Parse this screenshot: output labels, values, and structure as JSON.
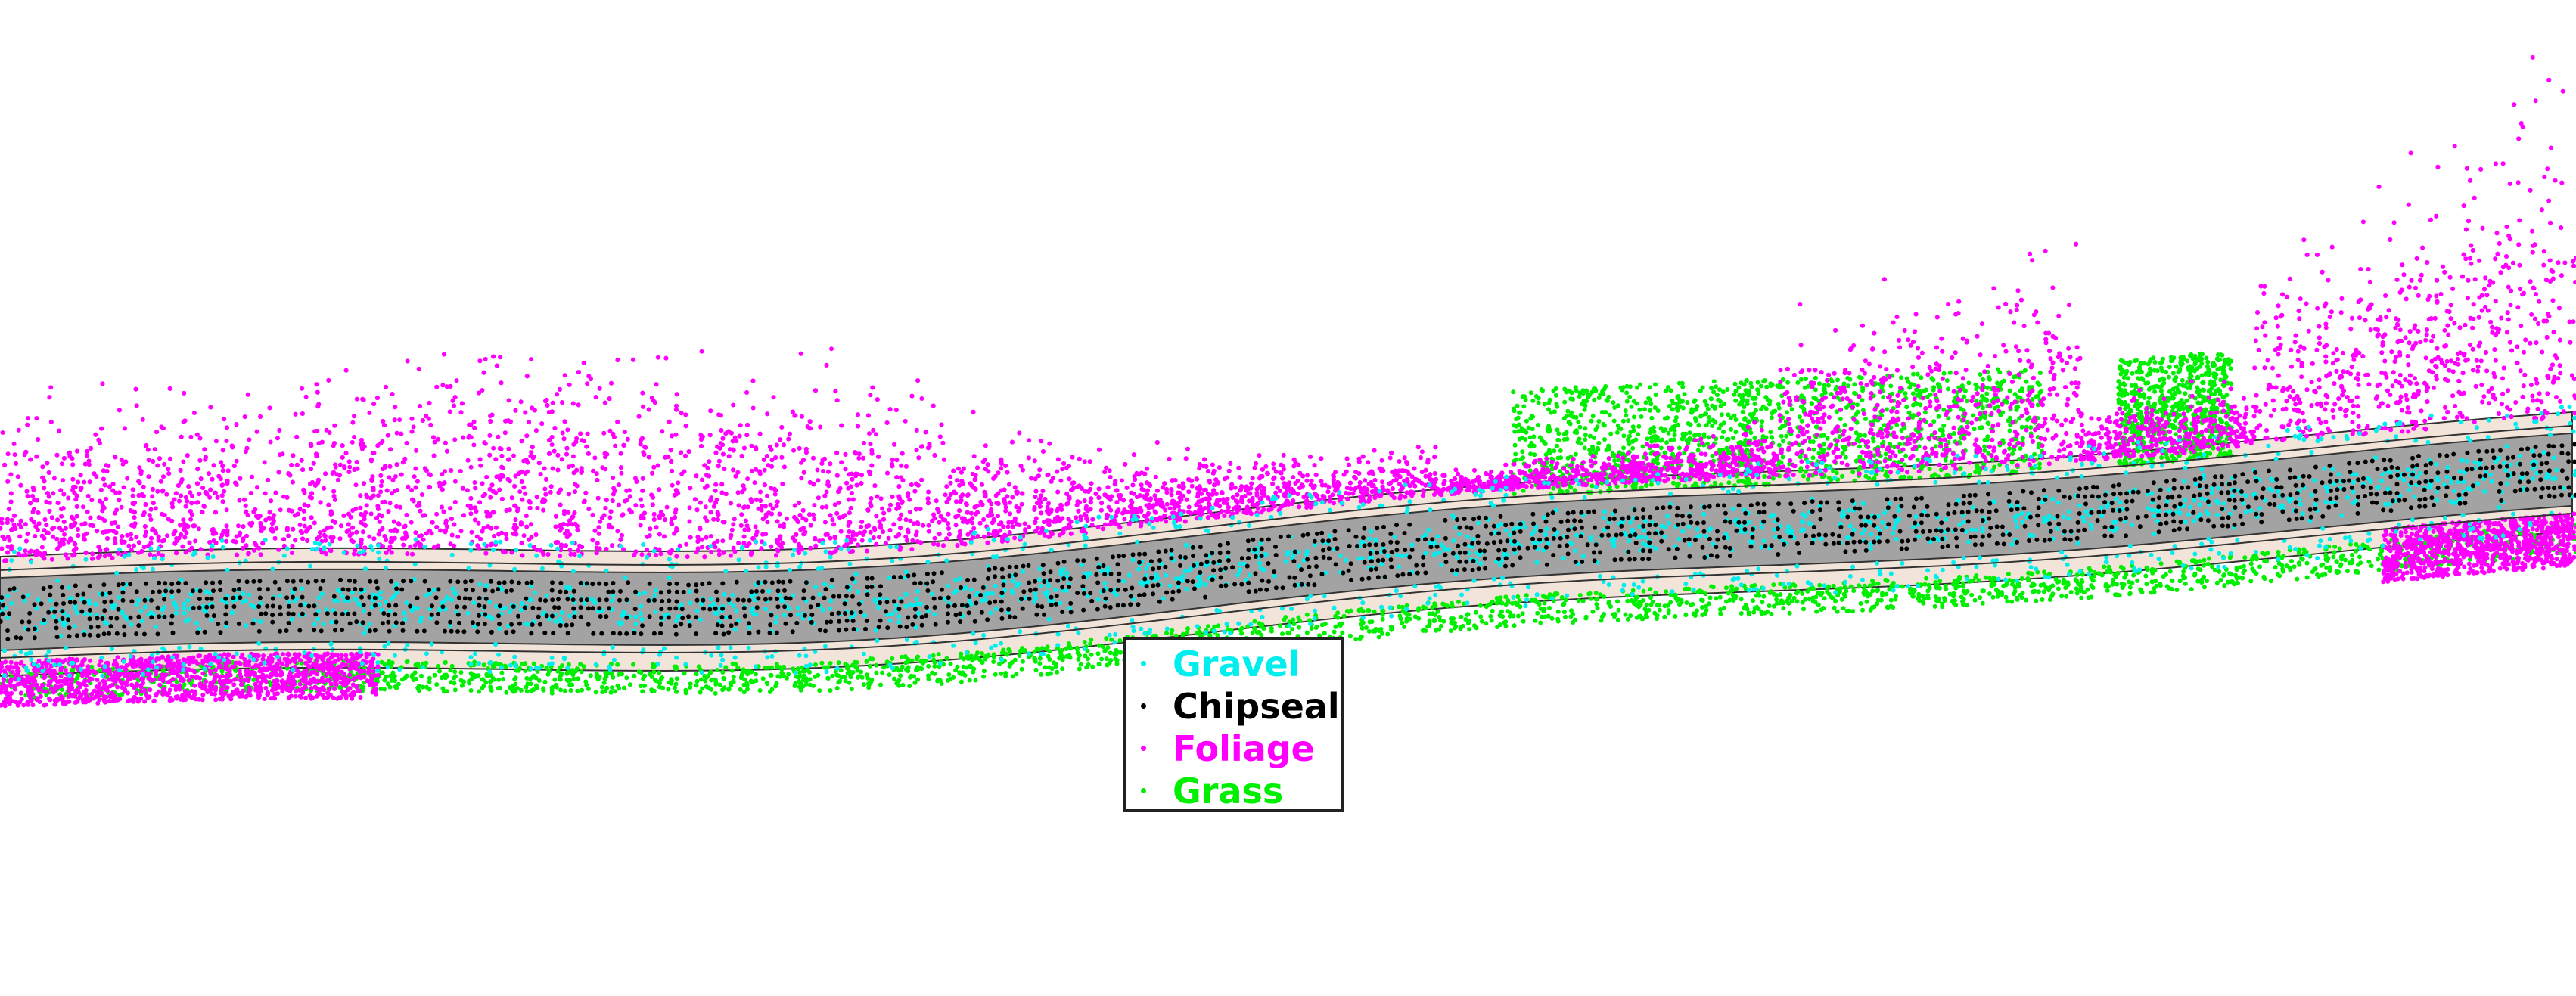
{
  "colors": {
    "background": "#ffffff",
    "road_surface": "#a3a3a3",
    "road_edge_fill": "#f2e4d8",
    "outline": "#333333"
  },
  "classes": [
    {
      "key": "gravel",
      "label": "Gravel",
      "color": "#00eeee"
    },
    {
      "key": "chipseal",
      "label": "Chipseal",
      "color": "#000000"
    },
    {
      "key": "foliage",
      "label": "Foliage",
      "color": "#ff00ff"
    },
    {
      "key": "grass",
      "label": "Grass",
      "color": "#00ee00"
    }
  ],
  "legend": {
    "placement": "bottom-center"
  }
}
